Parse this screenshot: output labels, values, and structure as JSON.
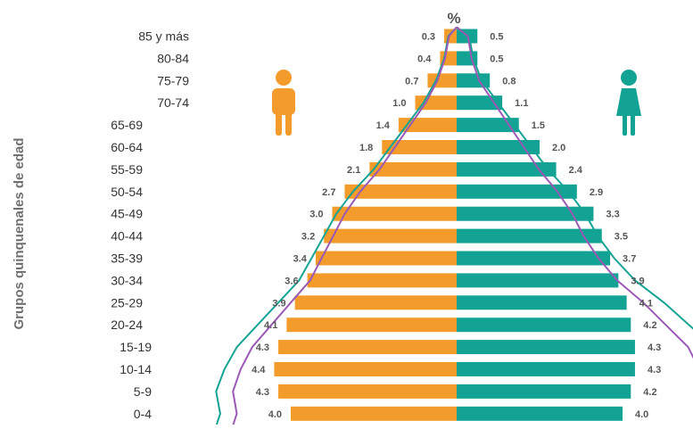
{
  "chart_data": {
    "type": "bar",
    "subtype": "population-pyramid",
    "title": "%",
    "ylabel": "Grupos quinquenales de edad",
    "categories": [
      "85 y más",
      "80-84",
      "75-79",
      "70-74",
      "65-69",
      "60-64",
      "55-59",
      "50-54",
      "45-49",
      "40-44",
      "35-39",
      "30-34",
      "25-29",
      "20-24",
      "15-19",
      "10-14",
      "5-9",
      "0-4"
    ],
    "series": [
      {
        "key": "men",
        "icon": "male-icon",
        "color": "#f39c2c",
        "values": [
          0.3,
          0.4,
          0.7,
          1.0,
          1.4,
          1.8,
          2.1,
          2.7,
          3.0,
          3.2,
          3.4,
          3.6,
          3.9,
          4.1,
          4.3,
          4.4,
          4.3,
          4.0
        ],
        "labels": [
          "0.3",
          "0.4",
          "0.7",
          "1.0",
          "1.4",
          "1.8",
          "2.1",
          "2.7",
          "3.0",
          "3.2",
          "3.4",
          "3.6",
          "3.9",
          "4.1",
          "4.3",
          "4.4",
          "4.3",
          "4.0"
        ],
        "line_values": [
          0.2,
          0.3,
          0.5,
          0.8,
          1.2,
          1.6,
          2.0,
          2.5,
          2.9,
          3.2,
          3.5,
          3.8,
          4.3,
          4.8,
          5.3,
          5.6,
          5.8,
          5.7
        ],
        "line_color": "#9b59b6"
      },
      {
        "key": "women",
        "icon": "female-icon",
        "color": "#13a394",
        "values": [
          0.5,
          0.5,
          0.8,
          1.1,
          1.5,
          2.0,
          2.4,
          2.9,
          3.3,
          3.5,
          3.7,
          3.9,
          4.1,
          4.2,
          4.3,
          4.3,
          4.2,
          4.0
        ],
        "labels": [
          "0.5",
          "0.5",
          "0.8",
          "1.1",
          "1.5",
          "2.0",
          "2.4",
          "2.9",
          "3.3",
          "3.5",
          "3.7",
          "3.9",
          "4.1",
          "4.2",
          "4.3",
          "4.3",
          "4.2",
          "4.0"
        ],
        "line_values": [
          0.3,
          0.4,
          0.6,
          1.0,
          1.4,
          1.8,
          2.2,
          2.7,
          3.1,
          3.4,
          3.8,
          4.3,
          5.0,
          5.6,
          6.2,
          6.5,
          6.7,
          6.6
        ],
        "line_color": "#1fa89b"
      }
    ],
    "legend": "icons"
  }
}
